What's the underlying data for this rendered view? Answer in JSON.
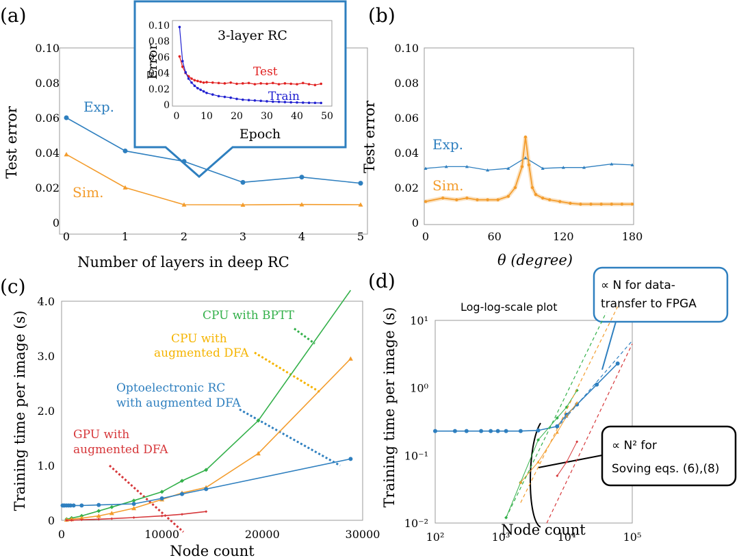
{
  "colors": {
    "exp": "#2e7fbf",
    "sim": "#f39c2c",
    "cpu_bptt": "#33b04a",
    "cpu_dfa": "#f39c2c",
    "opto": "#2e7fbf",
    "gpu": "#d6373a",
    "test": "#e02020",
    "train": "#2020d0"
  },
  "chart_data": [
    {
      "panel": "(a)",
      "type": "line",
      "xlabel": "Number of layers in deep RC",
      "ylabel": "Test error",
      "xlim": [
        0,
        5
      ],
      "ylim": [
        0,
        0.1
      ],
      "x_ticks": [
        "0",
        "1",
        "2",
        "3",
        "4",
        "5"
      ],
      "y_ticks": [
        "0",
        "0.02",
        "0.04",
        "0.06",
        "0.08",
        "0.10"
      ],
      "series": [
        {
          "name": "Exp.",
          "x": [
            0,
            1,
            2,
            3,
            4,
            5
          ],
          "values": [
            0.06,
            0.041,
            0.035,
            0.023,
            0.026,
            0.0225
          ]
        },
        {
          "name": "Sim.",
          "x": [
            0,
            1,
            2,
            3,
            4,
            5
          ],
          "values": [
            0.039,
            0.02,
            0.0102,
            0.0101,
            0.0103,
            0.0102
          ]
        }
      ],
      "inset": {
        "title": "3-layer RC",
        "xlabel": "Epoch",
        "ylabel": "Error",
        "xlim": [
          0,
          50
        ],
        "ylim": [
          0,
          0.1
        ],
        "x_ticks": [
          "0",
          "10",
          "20",
          "30",
          "40",
          "50"
        ],
        "y_ticks": [
          "0",
          "0.02",
          "0.04",
          "0.06",
          "0.08",
          "0.10"
        ],
        "series": [
          {
            "name": "Test",
            "x": [
              1,
              2,
              3,
              4,
              5,
              6,
              7,
              8,
              9,
              10,
              12,
              14,
              16,
              18,
              20,
              22,
              24,
              26,
              28,
              30,
              32,
              34,
              36,
              38,
              40,
              42,
              44,
              46,
              48
            ],
            "values": [
              0.06,
              0.047,
              0.039,
              0.035,
              0.032,
              0.03,
              0.029,
              0.028,
              0.027,
              0.0275,
              0.027,
              0.0265,
              0.026,
              0.027,
              0.0255,
              0.026,
              0.0265,
              0.025,
              0.026,
              0.0255,
              0.0265,
              0.025,
              0.026,
              0.0255,
              0.025,
              0.0265,
              0.025,
              0.024,
              0.0255
            ]
          },
          {
            "name": "Train",
            "x": [
              1,
              2,
              3,
              4,
              5,
              6,
              7,
              8,
              9,
              10,
              12,
              14,
              16,
              18,
              20,
              22,
              24,
              26,
              28,
              30,
              32,
              34,
              36,
              38,
              40,
              42,
              44,
              46,
              48
            ],
            "values": [
              0.097,
              0.054,
              0.04,
              0.032,
              0.027,
              0.023,
              0.02,
              0.018,
              0.016,
              0.014,
              0.012,
              0.01,
              0.009,
              0.008,
              0.0065,
              0.0055,
              0.005,
              0.0045,
              0.004,
              0.0035,
              0.003,
              0.0028,
              0.0025,
              0.0022,
              0.002,
              0.0018,
              0.0016,
              0.0015,
              0.0014
            ]
          }
        ]
      }
    },
    {
      "panel": "(b)",
      "type": "line",
      "xlabel": "θ (degree)",
      "ylabel": "Test error",
      "xlim": [
        0,
        180
      ],
      "ylim": [
        0,
        0.1
      ],
      "x_ticks": [
        "0",
        "60",
        "120",
        "180"
      ],
      "y_ticks": [
        "0",
        "0.02",
        "0.04",
        "0.06",
        "0.08",
        "0.10"
      ],
      "series": [
        {
          "name": "Exp.",
          "x": [
            0,
            18,
            36,
            54,
            72,
            87,
            102,
            120,
            138,
            162,
            180
          ],
          "values": [
            0.031,
            0.032,
            0.032,
            0.03,
            0.031,
            0.037,
            0.031,
            0.0315,
            0.0315,
            0.0335,
            0.033
          ]
        },
        {
          "name": "Sim.",
          "x": [
            0,
            15,
            27,
            36,
            45,
            54,
            63,
            72,
            78,
            84,
            87,
            90,
            93,
            96,
            102,
            108,
            117,
            126,
            135,
            144,
            153,
            162,
            171,
            180
          ],
          "values": [
            0.012,
            0.014,
            0.013,
            0.014,
            0.013,
            0.013,
            0.013,
            0.015,
            0.02,
            0.032,
            0.049,
            0.033,
            0.02,
            0.016,
            0.014,
            0.013,
            0.012,
            0.011,
            0.0105,
            0.0105,
            0.0105,
            0.0105,
            0.0105,
            0.0105
          ]
        }
      ]
    },
    {
      "panel": "(c)",
      "type": "line",
      "xlabel": "Node count",
      "ylabel": "Training time per image (s)",
      "xlim": [
        0,
        30000
      ],
      "ylim": [
        0,
        4.0
      ],
      "x_ticks": [
        "0",
        "10000",
        "20000",
        "30000"
      ],
      "y_ticks": [
        "0",
        "1.0",
        "2.0",
        "3.0",
        "4.0"
      ],
      "series": [
        {
          "name": "CPU with BPTT",
          "x": [
            500,
            1000,
            2000,
            3700,
            5000,
            7200,
            10000,
            12000,
            14400,
            19600,
            28800
          ],
          "values": [
            0.02,
            0.04,
            0.08,
            0.17,
            0.24,
            0.36,
            0.52,
            0.72,
            0.92,
            1.82,
            4.2
          ]
        },
        {
          "name": "CPU with augmented DFA",
          "x": [
            500,
            1000,
            2000,
            3700,
            5000,
            7200,
            10000,
            12000,
            14400,
            19600,
            28800
          ],
          "values": [
            0.01,
            0.02,
            0.04,
            0.08,
            0.13,
            0.22,
            0.38,
            0.5,
            0.6,
            1.22,
            2.95
          ]
        },
        {
          "name": "Optoelectronic RC with augmented DFA",
          "x": [
            100,
            200,
            300,
            500,
            700,
            900,
            1200,
            2000,
            3700,
            7200,
            10000,
            12000,
            14400,
            28800
          ],
          "values": [
            0.27,
            0.27,
            0.27,
            0.27,
            0.27,
            0.27,
            0.27,
            0.27,
            0.28,
            0.3,
            0.4,
            0.48,
            0.57,
            1.12
          ]
        },
        {
          "name": "GPU with augmented DFA",
          "x": [
            500,
            1000,
            2000,
            3700,
            5000,
            7200,
            10000,
            12000,
            14400
          ],
          "values": [
            0.0,
            0.0,
            0.01,
            0.02,
            0.03,
            0.05,
            0.08,
            0.11,
            0.16
          ]
        }
      ],
      "annotations": [
        "CPU with BPTT",
        "CPU with augmented DFA",
        "Optoelectronic RC with augmented DFA",
        "GPU with augmented DFA"
      ]
    },
    {
      "panel": "(d)",
      "type": "line",
      "title": "Log-log-scale plot",
      "xlabel": "Node count",
      "ylabel": "Training time per image (s)",
      "xscale": "log",
      "yscale": "log",
      "xlim": [
        100,
        100000
      ],
      "ylim": [
        0.01,
        10
      ],
      "x_ticks": [
        "10²",
        "10³",
        "10⁴",
        "10⁵"
      ],
      "y_ticks": [
        "10⁻²",
        "10⁻¹",
        "10⁰",
        "10¹"
      ],
      "series": [
        {
          "x": [
            100,
            200,
            300,
            500,
            700,
            900,
            1200,
            2000,
            3700,
            7200,
            10000,
            14400,
            28800,
            60000
          ],
          "values": [
            0.23,
            0.23,
            0.23,
            0.23,
            0.23,
            0.23,
            0.23,
            0.23,
            0.235,
            0.27,
            0.4,
            0.57,
            1.12,
            2.3
          ]
        },
        {
          "x": [
            1200,
            2000,
            3700,
            7200,
            10000,
            14400
          ],
          "values": [
            0.012,
            0.04,
            0.17,
            0.36,
            0.52,
            0.92
          ]
        },
        {
          "x": [
            2000,
            3700,
            7200,
            10000,
            14400
          ],
          "values": [
            0.04,
            0.08,
            0.22,
            0.38,
            0.6
          ]
        },
        {
          "x": [
            7200,
            10000,
            14400
          ],
          "values": [
            0.05,
            0.08,
            0.16
          ]
        }
      ],
      "annotations": [
        "∝ N for data-transfer to FPGA",
        "∝ N² for Soving eqs. (6),(8)"
      ]
    }
  ],
  "labels": {
    "panel_a": "(a)",
    "panel_b": "(b)",
    "panel_c": "(c)",
    "panel_d": "(d)",
    "exp": "Exp.",
    "sim": "Sim.",
    "inset_title": "3-layer RC",
    "inset_test": "Test",
    "inset_train": "Train",
    "inset_xlabel": "Epoch",
    "inset_ylabel": "Error",
    "a_xlabel": "Number of layers in deep RC",
    "a_ylabel": "Test error",
    "b_ylabel": "Test error",
    "b_xlabel": "θ (degree)",
    "c_ylabel": "Training time per image (s)",
    "c_xlabel": "Node count",
    "c_bptt": "CPU with BPTT",
    "c_cpu1": "CPU with",
    "c_cpu2": "augmented DFA",
    "c_opto1": "Optoelectronic RC",
    "c_opto2": "with augmented DFA",
    "c_gpu1": "GPU with",
    "c_gpu2": "augmented DFA",
    "d_title": "Log-log-scale plot",
    "d_ylabel": "Training time per image (s)",
    "d_xlabel": "Node count",
    "d_box1_l1": "∝ N for data-",
    "d_box1_l2": "transfer to FPGA",
    "d_box2_l1": "∝ N² for",
    "d_box2_l2": "Soving eqs. (6),(8)"
  }
}
